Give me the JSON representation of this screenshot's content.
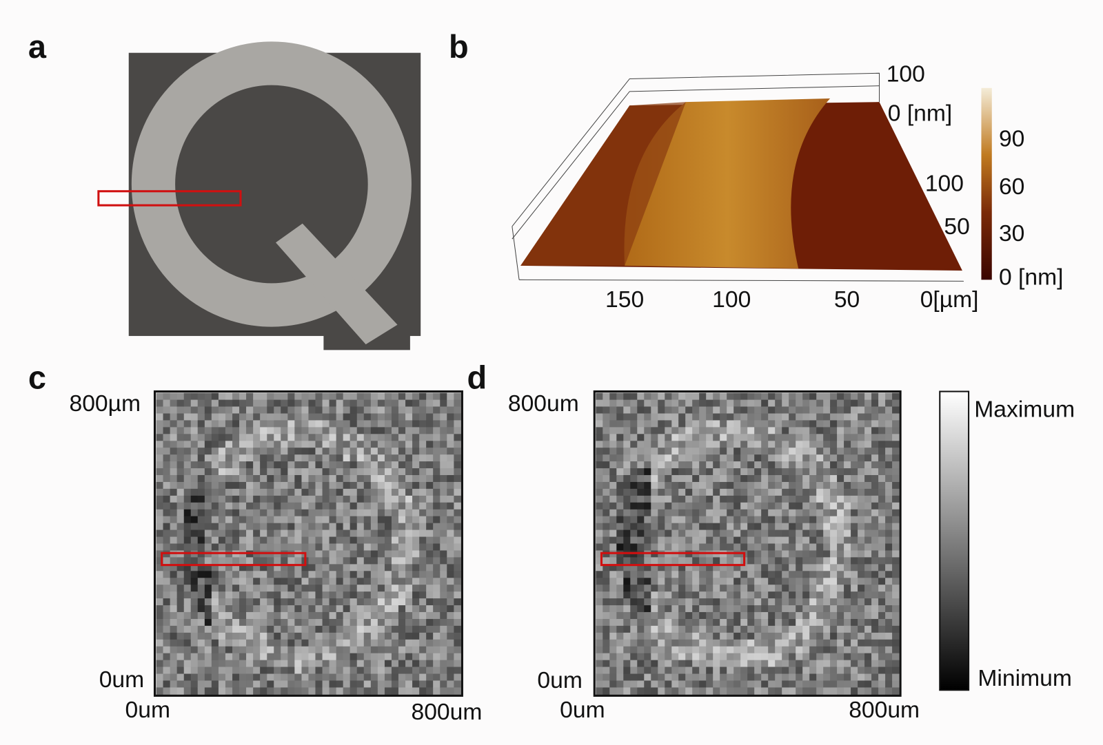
{
  "panels": {
    "a": {
      "label": "a"
    },
    "b": {
      "label": "b",
      "z_axis": [
        "100",
        "0 [nm]"
      ],
      "y_axis": [
        "100",
        "50"
      ],
      "x_axis": [
        "150",
        "100",
        "50",
        "0[µm]"
      ],
      "colorbar": [
        "90",
        "60",
        "30",
        "0 [nm]"
      ]
    },
    "c": {
      "label": "c",
      "y_axis": [
        "800µm",
        "0um"
      ],
      "x_axis": [
        "0um",
        "800um"
      ]
    },
    "d": {
      "label": "d",
      "y_axis": [
        "800um",
        "0um"
      ],
      "x_axis": [
        "0um",
        "800um"
      ]
    },
    "colorbar": {
      "max": "Maximum",
      "min": "Minimum"
    }
  }
}
